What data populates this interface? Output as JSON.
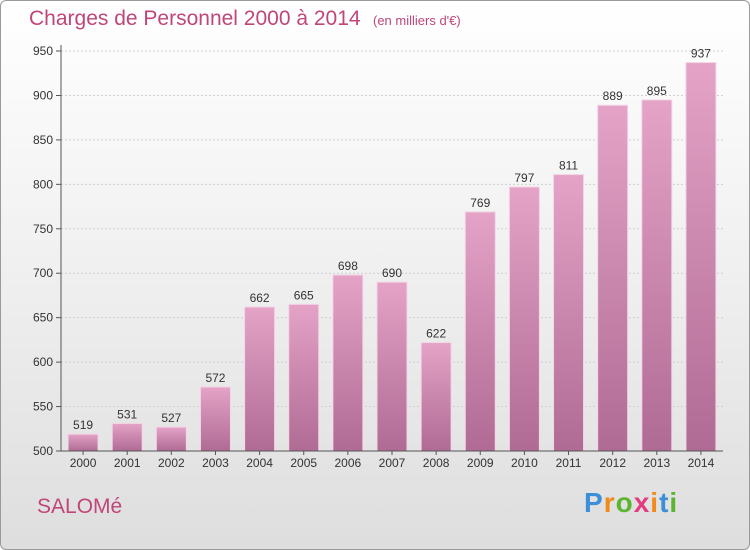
{
  "header": {
    "title": "Charges de Personnel 2000 à 2014",
    "subtitle": "(en milliers d'€)"
  },
  "footer": {
    "commune": "SALOMé",
    "logo_letters": [
      {
        "char": "P",
        "color": "#3b8ed8"
      },
      {
        "char": "r",
        "color": "#f08a1a"
      },
      {
        "char": "o",
        "color": "#5cb531"
      },
      {
        "char": "x",
        "color": "#e43a7e"
      },
      {
        "char": "i",
        "color": "#f08a1a"
      },
      {
        "char": "t",
        "color": "#3b8ed8"
      },
      {
        "char": "i",
        "color": "#5cb531"
      }
    ]
  },
  "colors": {
    "bar_top": "#e4a3c7",
    "bar_bottom": "#b06b94",
    "title": "#c0467a"
  },
  "chart_data": {
    "type": "bar",
    "title": "Charges de Personnel 2000 à 2014",
    "subtitle": "(en milliers d'€)",
    "categories": [
      "2000",
      "2001",
      "2002",
      "2003",
      "2004",
      "2005",
      "2006",
      "2007",
      "2008",
      "2009",
      "2010",
      "2011",
      "2012",
      "2013",
      "2014"
    ],
    "values": [
      519,
      531,
      527,
      572,
      662,
      665,
      698,
      690,
      622,
      769,
      797,
      811,
      889,
      895,
      937
    ],
    "ylim": [
      500,
      950
    ],
    "yticks": [
      500,
      550,
      600,
      650,
      700,
      750,
      800,
      850,
      900,
      950
    ],
    "grid": true,
    "xlabel": "",
    "ylabel": ""
  }
}
